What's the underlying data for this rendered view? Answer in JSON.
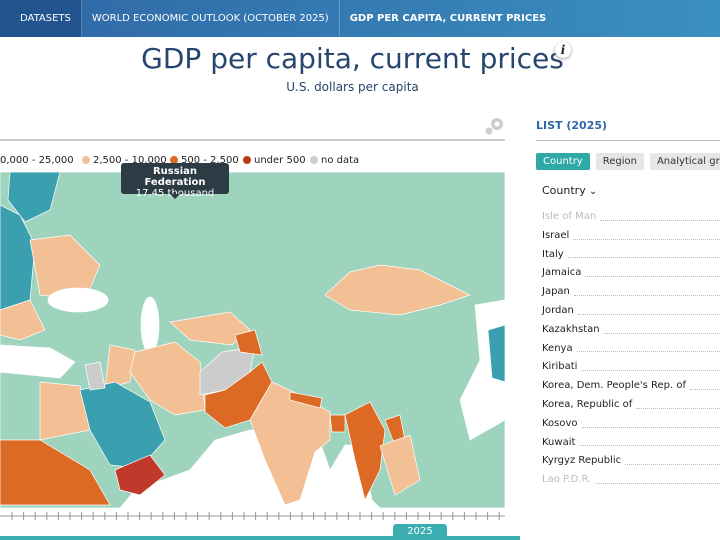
{
  "nav": [
    "DATASETS",
    "WORLD ECONOMIC OUTLOOK (OCTOBER 2025)",
    "GDP PER CAPITA, CURRENT PRICES"
  ],
  "header": {
    "title": "GDP per capita, current prices",
    "info": "i",
    "subtitle": "U.S. dollars per capita"
  },
  "map": {
    "legend": [
      "0,000 - 25,000",
      "2,500 - 10,000",
      "500 - 2,500",
      "under 500",
      "no data"
    ],
    "tooltip": {
      "name": "Russian Federation",
      "value": "17.45 thousand"
    }
  },
  "timeline": {
    "year": "2025"
  },
  "list": {
    "title": "LIST (2025)",
    "tabs": [
      "Country",
      "Region",
      "Analytical gr"
    ],
    "sort": "Country",
    "items": [
      "Isle of Man",
      "Israel",
      "Italy",
      "Jamaica",
      "Japan",
      "Jordan",
      "Kazakhstan",
      "Kenya",
      "Kiribati",
      "Korea, Dem. People's Rep. of",
      "Korea, Republic of",
      "Kosovo",
      "Kuwait",
      "Kyrgyz Republic",
      "Lao P.D.R."
    ]
  }
}
